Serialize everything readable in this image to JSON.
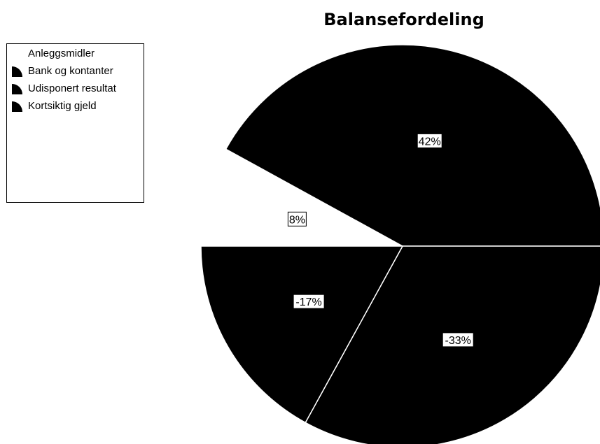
{
  "chart_data": {
    "type": "pie",
    "title": "Balansefordeling",
    "slices": [
      {
        "label": "Anleggsmidler",
        "display": "8%",
        "value": 8,
        "color": "#ffffff"
      },
      {
        "label": "Bank og kontanter",
        "display": "42%",
        "value": 42,
        "color": "#000000"
      },
      {
        "label": "Udisponert resultat",
        "display": "-33%",
        "value": -33,
        "color": "#000000"
      },
      {
        "label": "Kortsiktig gjeld",
        "display": "-17%",
        "value": -17,
        "color": "#000000"
      }
    ],
    "legend_position": "top-left"
  }
}
